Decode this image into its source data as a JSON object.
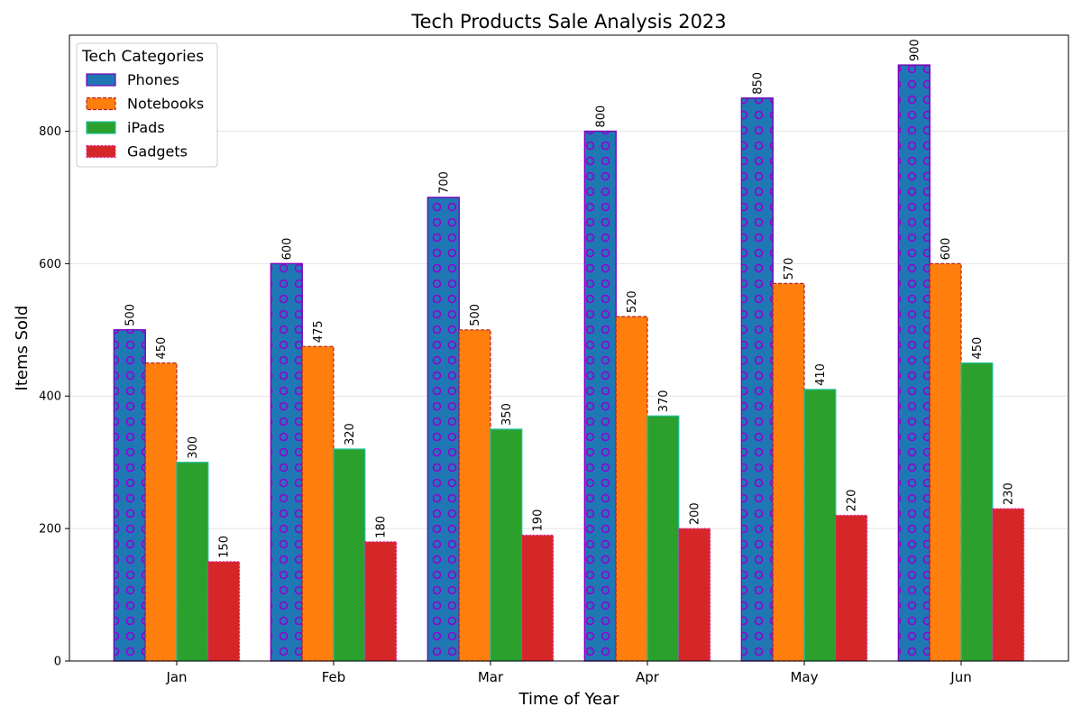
{
  "chart_data": {
    "type": "bar",
    "title": "Tech Products Sale Analysis 2023",
    "xlabel": "Time of Year",
    "ylabel": "Items Sold",
    "categories": [
      "Jan",
      "Feb",
      "Mar",
      "Apr",
      "May",
      "Jun"
    ],
    "ylim": [
      0,
      945
    ],
    "yticks": [
      0,
      200,
      400,
      600,
      800
    ],
    "grid": "horizontal",
    "legend": {
      "title": "Tech Categories",
      "placement": "top-left"
    },
    "series": [
      {
        "name": "Phones",
        "values": [
          500,
          600,
          700,
          800,
          850,
          900
        ],
        "color": "#1f77b4",
        "edge": "#7a00b8",
        "hatch": "circles",
        "hatch_color": "#9400d3"
      },
      {
        "name": "Notebooks",
        "values": [
          450,
          475,
          500,
          520,
          570,
          600
        ],
        "color": "#ff7f0e",
        "edge": "#b22222",
        "hatch": "none"
      },
      {
        "name": "iPads",
        "values": [
          300,
          320,
          350,
          370,
          410,
          450
        ],
        "color": "#2ca02c",
        "edge": "#20c0a0",
        "hatch": "none"
      },
      {
        "name": "Gadgets",
        "values": [
          150,
          180,
          190,
          200,
          220,
          230
        ],
        "color": "#d62728",
        "edge": "#e020a0",
        "hatch": "none"
      }
    ]
  }
}
